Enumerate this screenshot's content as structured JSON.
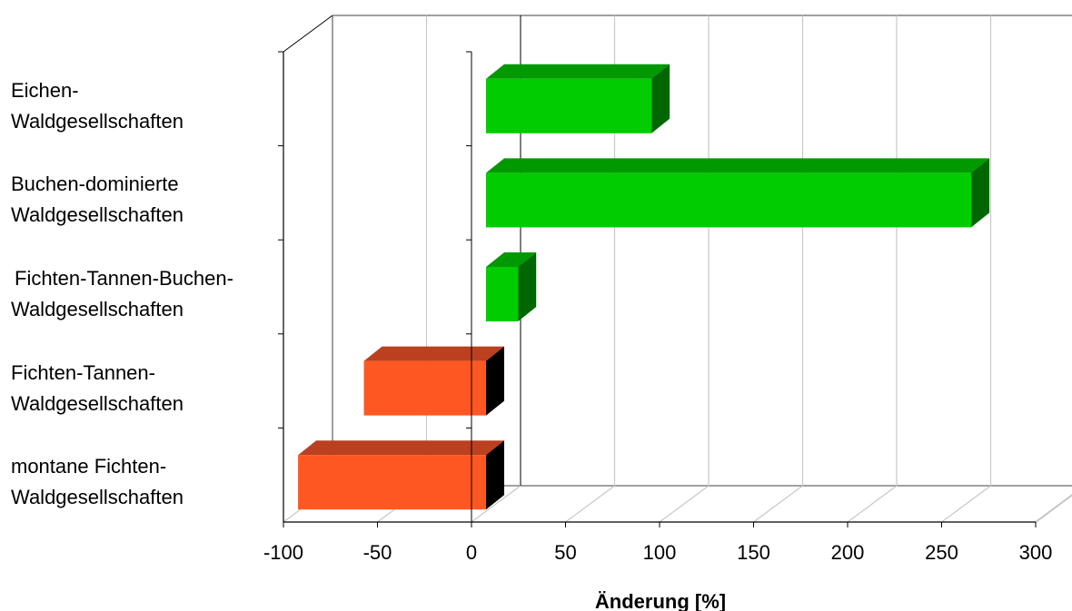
{
  "chart_data": {
    "type": "bar",
    "orientation": "horizontal",
    "three_d": true,
    "categories": [
      [
        "Eichen-",
        "Waldgesellschaften"
      ],
      [
        "Buchen-dominierte",
        "Waldgesellschaften"
      ],
      [
        "Fichten-Tannen-Buchen-",
        "Waldgesellschaften"
      ],
      [
        "Fichten-Tannen-",
        "Waldgesellschaften"
      ],
      [
        "montane Fichten-",
        "Waldgesellschaften"
      ]
    ],
    "values": [
      88,
      258,
      17,
      -64,
      -99
    ],
    "xlabel": "Änderung [%]",
    "xlim": [
      -100,
      300
    ],
    "xticks": [
      "-100",
      "-50",
      "0",
      "50",
      "100",
      "150",
      "200",
      "250",
      "300"
    ],
    "grid": true,
    "colors": {
      "positive": "#00cc00",
      "positive_top": "#009900",
      "positive_side": "#006600",
      "negative": "#ff5722",
      "negative_top": "#bb4020",
      "negative_side": "#000000",
      "grid": "#c8c8c8",
      "frame": "#808080"
    }
  }
}
